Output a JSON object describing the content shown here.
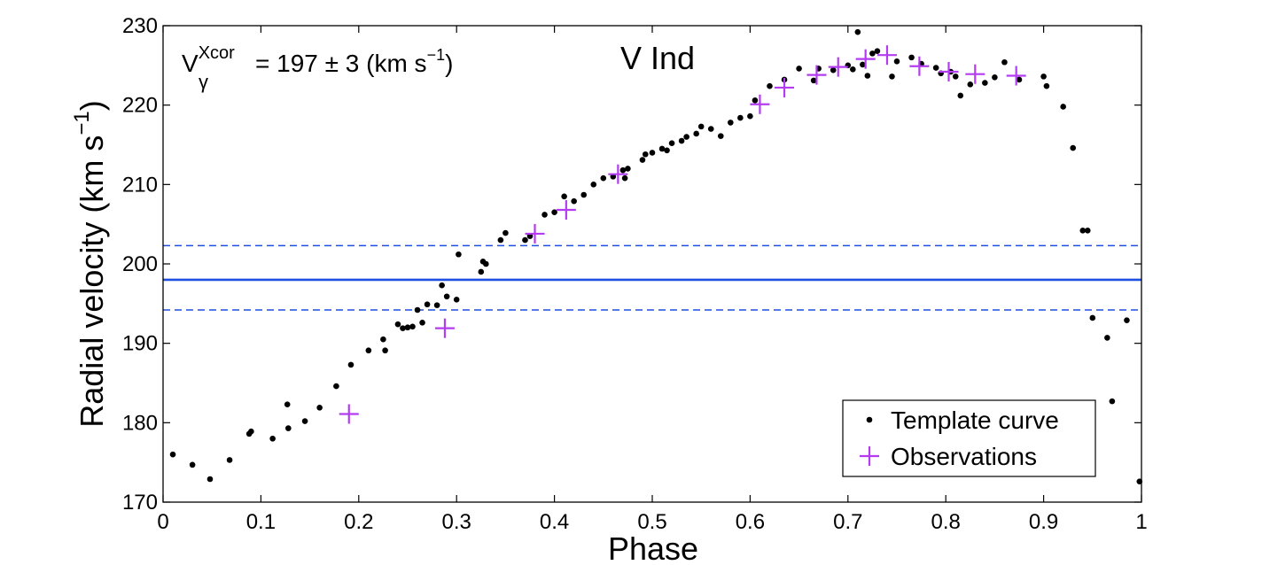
{
  "chart_data": {
    "type": "scatter",
    "title": "V Ind",
    "xlabel": "Phase",
    "ylabel": "Radial velocity (km s",
    "ylabel_sup": "−1",
    "ylabel_close": ")",
    "xlim": [
      0,
      1
    ],
    "ylim": [
      170,
      230
    ],
    "x_ticks": [
      0,
      0.1,
      0.2,
      0.3,
      0.4,
      0.5,
      0.6,
      0.7,
      0.8,
      0.9,
      1
    ],
    "x_tick_labels": [
      "0",
      "0.1",
      "0.2",
      "0.3",
      "0.4",
      "0.5",
      "0.6",
      "0.7",
      "0.8",
      "0.9",
      "1"
    ],
    "y_ticks": [
      170,
      180,
      190,
      200,
      210,
      220,
      230
    ],
    "y_tick_labels": [
      "170",
      "180",
      "190",
      "200",
      "210",
      "220",
      "230"
    ],
    "grid": false,
    "annotation": {
      "v": "V",
      "sup": "Xcor",
      "sub": "γ",
      "rest": "= 197 ± 3 (km s",
      "rest_sup": "−1",
      "rest_close": ")"
    },
    "systemic_velocity": {
      "value": 198,
      "lower": 194.2,
      "upper": 202.3,
      "color": "#1f4fe0"
    },
    "series": [
      {
        "name": "Template curve",
        "marker": "dot",
        "color": "#000000",
        "x": [
          0.01,
          0.03,
          0.048,
          0.068,
          0.088,
          0.09,
          0.112,
          0.127,
          0.128,
          0.145,
          0.16,
          0.177,
          0.192,
          0.21,
          0.225,
          0.227,
          0.24,
          0.245,
          0.25,
          0.255,
          0.26,
          0.265,
          0.27,
          0.28,
          0.285,
          0.29,
          0.3,
          0.302,
          0.325,
          0.327,
          0.33,
          0.345,
          0.35,
          0.37,
          0.375,
          0.39,
          0.4,
          0.41,
          0.42,
          0.43,
          0.44,
          0.45,
          0.46,
          0.47,
          0.472,
          0.475,
          0.49,
          0.493,
          0.5,
          0.51,
          0.515,
          0.52,
          0.53,
          0.535,
          0.545,
          0.55,
          0.56,
          0.57,
          0.58,
          0.59,
          0.6,
          0.605,
          0.62,
          0.635,
          0.65,
          0.665,
          0.67,
          0.685,
          0.7,
          0.705,
          0.71,
          0.715,
          0.72,
          0.725,
          0.73,
          0.745,
          0.75,
          0.765,
          0.775,
          0.79,
          0.795,
          0.805,
          0.81,
          0.815,
          0.825,
          0.84,
          0.85,
          0.86,
          0.875,
          0.9,
          0.903,
          0.92,
          0.93,
          0.94,
          0.945,
          0.95,
          0.965,
          0.97,
          0.985,
          0.998
        ],
        "y": [
          176,
          174.7,
          172.9,
          175.3,
          178.6,
          178.9,
          178.0,
          182.3,
          179.3,
          180.2,
          181.9,
          184.6,
          187.3,
          189.1,
          190.5,
          189.1,
          192.4,
          191.9,
          192.0,
          192.1,
          194.2,
          192.6,
          194.9,
          194.8,
          197.3,
          195.9,
          195.5,
          201.2,
          199.0,
          200.3,
          200.0,
          203.0,
          203.9,
          203.0,
          203.5,
          206.2,
          206.5,
          208.5,
          207.9,
          208.7,
          210.0,
          210.8,
          211.0,
          211.8,
          210.8,
          212.0,
          213.1,
          213.8,
          214.0,
          214.5,
          214.3,
          215.2,
          215.5,
          216.0,
          216.4,
          217.3,
          217.0,
          216.1,
          217.8,
          218.4,
          218.6,
          220.6,
          222.4,
          223.2,
          224.6,
          223.1,
          224.6,
          224.4,
          225.0,
          224.5,
          229.2,
          225.1,
          223.7,
          226.5,
          226.8,
          223.6,
          225.5,
          226.0,
          225.2,
          224.7,
          224.0,
          224.2,
          223.6,
          221.2,
          222.6,
          222.8,
          223.5,
          225.4,
          223.2,
          223.6,
          222.4,
          219.8,
          214.6,
          204.2,
          204.2,
          193.2,
          190.7,
          182.7,
          192.9,
          172.6
        ]
      },
      {
        "name": "Observations",
        "marker": "plus",
        "color": "#b43cf0",
        "x": [
          0.19,
          0.288,
          0.38,
          0.412,
          0.465,
          0.61,
          0.635,
          0.668,
          0.69,
          0.718,
          0.74,
          0.773,
          0.803,
          0.83,
          0.872
        ],
        "y": [
          181.1,
          191.9,
          203.8,
          206.8,
          211.3,
          220.1,
          222.2,
          223.8,
          224.8,
          225.8,
          226.3,
          224.9,
          224.2,
          223.9,
          223.7
        ]
      }
    ]
  }
}
